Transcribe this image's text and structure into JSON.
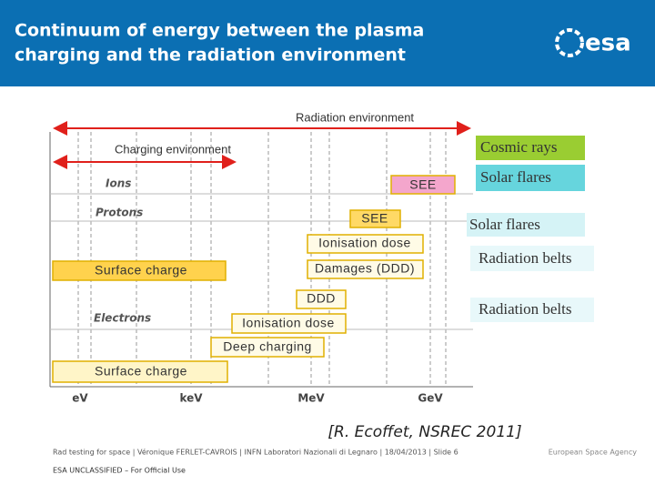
{
  "header": {
    "title_lines": [
      "Continuum of energy between the plasma",
      "charging and the radiation environment"
    ],
    "logo": "esa"
  },
  "diagram": {
    "arrows": {
      "radiation": "Radiation environment",
      "charging": "Charging environment"
    },
    "rows": [
      "Ions",
      "Protons",
      "Electrons"
    ],
    "axis_labels": [
      "eV",
      "keV",
      "MeV",
      "GeV"
    ],
    "boxes": [
      "SEE",
      "SEE",
      "Ionisation dose",
      "Surface charge",
      "Damages (DDD)",
      "DDD",
      "Ionisation dose",
      "Deep charging",
      "Surface charge"
    ],
    "sources": [
      "Cosmic rays",
      "Solar flares",
      "Solar flares",
      "Radiation belts",
      "Radiation belts"
    ]
  },
  "citation": "[R. Ecoffet, NSREC 2011]",
  "footer": {
    "line": "Rad testing for space | Véronique FERLET-CAVROIS | INFN Laboratori Nazionali di Legnaro | 18/04/2013 | Slide 6",
    "classification": "ESA UNCLASSIFIED – For Official Use",
    "agency": "European Space Agency"
  }
}
